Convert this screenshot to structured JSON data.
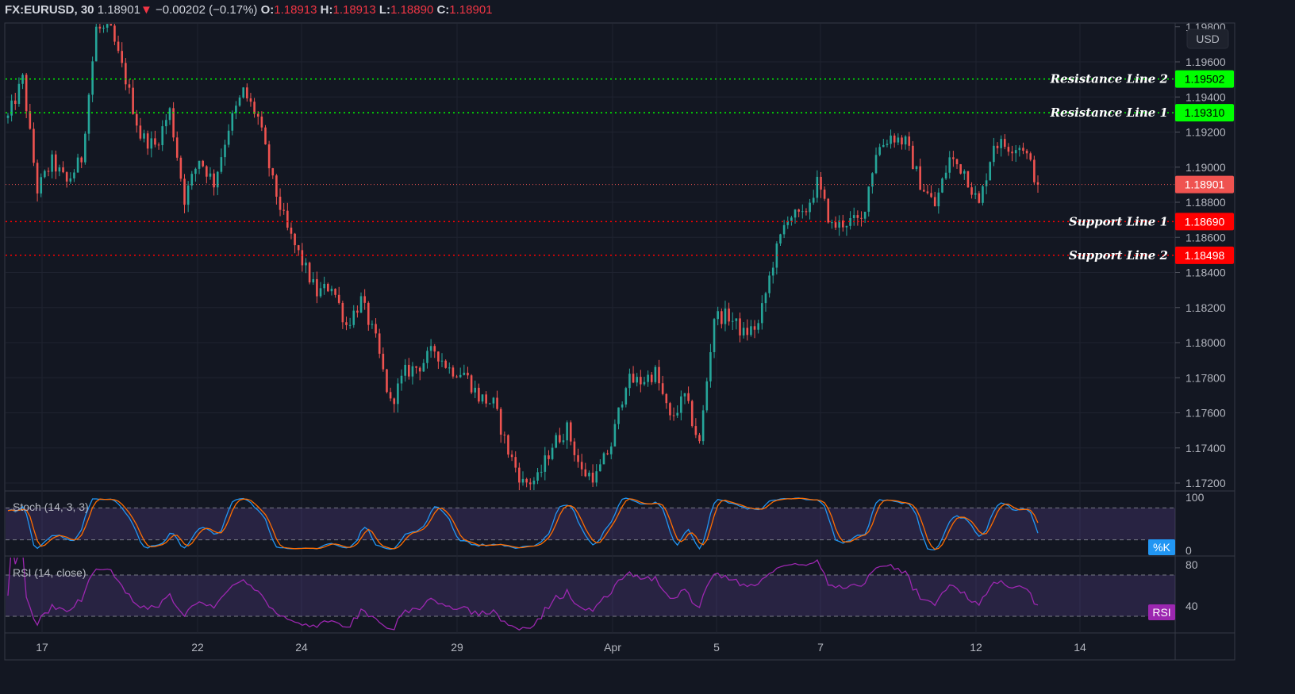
{
  "header": {
    "symbol": "FX:EURUSD, 30",
    "last": "1.18901",
    "direction_icon": "triangle-down-icon",
    "change": "−0.00202 (−0.17%)",
    "o_label": "O:",
    "o": "1.18913",
    "h_label": "H:",
    "h": "1.18913",
    "l_label": "L:",
    "l": "1.18890",
    "c_label": "C:",
    "c": "1.18901"
  },
  "currency": "USD",
  "colors": {
    "background": "#131722",
    "up": "#26a69a",
    "down": "#ef5350",
    "resistance": "#00ff00",
    "support": "#ff0000",
    "current": "#ef5350",
    "k": "#2196f3",
    "d": "#ff6d00",
    "rsi": "#9c27b0"
  },
  "chart_data": {
    "type": "candlestick",
    "price_axis": {
      "ticks": [
        "1.19800",
        "1.19600",
        "1.19400",
        "1.19200",
        "1.19000",
        "1.18800",
        "1.18600",
        "1.18400",
        "1.18200",
        "1.18000",
        "1.17800",
        "1.17600",
        "1.17400",
        "1.17200"
      ],
      "range": [
        1.1716,
        1.1986
      ]
    },
    "time_axis": {
      "ticks": [
        "17",
        "22",
        "24",
        "29",
        "Apr",
        "5",
        "7",
        "12",
        "14"
      ]
    },
    "closes_approx": [
      1.1928,
      1.195,
      1.1887,
      1.1903,
      1.1891,
      1.1905,
      1.1979,
      1.1977,
      1.195,
      1.1918,
      1.1912,
      1.1932,
      1.1882,
      1.1905,
      1.1891,
      1.1923,
      1.1943,
      1.1928,
      1.1891,
      1.1864,
      1.1846,
      1.1828,
      1.1833,
      1.181,
      1.1824,
      1.1801,
      1.1765,
      1.1783,
      1.1787,
      1.1796,
      1.1785,
      1.1783,
      1.1769,
      1.1765,
      1.1738,
      1.172,
      1.1722,
      1.1742,
      1.1751,
      1.1726,
      1.1724,
      1.1742,
      1.1778,
      1.1778,
      1.1783,
      1.1756,
      1.1769,
      1.1742,
      1.1815,
      1.1815,
      1.1805,
      1.181,
      1.1846,
      1.1873,
      1.1871,
      1.1891,
      1.1866,
      1.1869,
      1.1869,
      1.1909,
      1.1918,
      1.1914,
      1.1891,
      1.1878,
      1.1905,
      1.1898,
      1.1878,
      1.1914,
      1.1912,
      1.1912,
      1.189
    ],
    "levels": [
      {
        "name": "Resistance Line 2",
        "value": "1.19502",
        "type": "resistance"
      },
      {
        "name": "Resistance Line 1",
        "value": "1.19310",
        "type": "resistance"
      },
      {
        "name": "Support Line 1",
        "value": "1.18690",
        "type": "support"
      },
      {
        "name": "Support Line 2",
        "value": "1.18498",
        "type": "support"
      }
    ],
    "current_price": "1.18901",
    "stoch": {
      "title": "Stoch (14, 3, 3)",
      "ticks": [
        "100",
        "0"
      ],
      "bands": [
        20,
        80
      ],
      "badge": "%K"
    },
    "rsi": {
      "title": "RSI (14, close)",
      "ticks": [
        "80",
        "40"
      ],
      "bands": [
        30,
        70
      ],
      "badge": "RSI"
    }
  }
}
